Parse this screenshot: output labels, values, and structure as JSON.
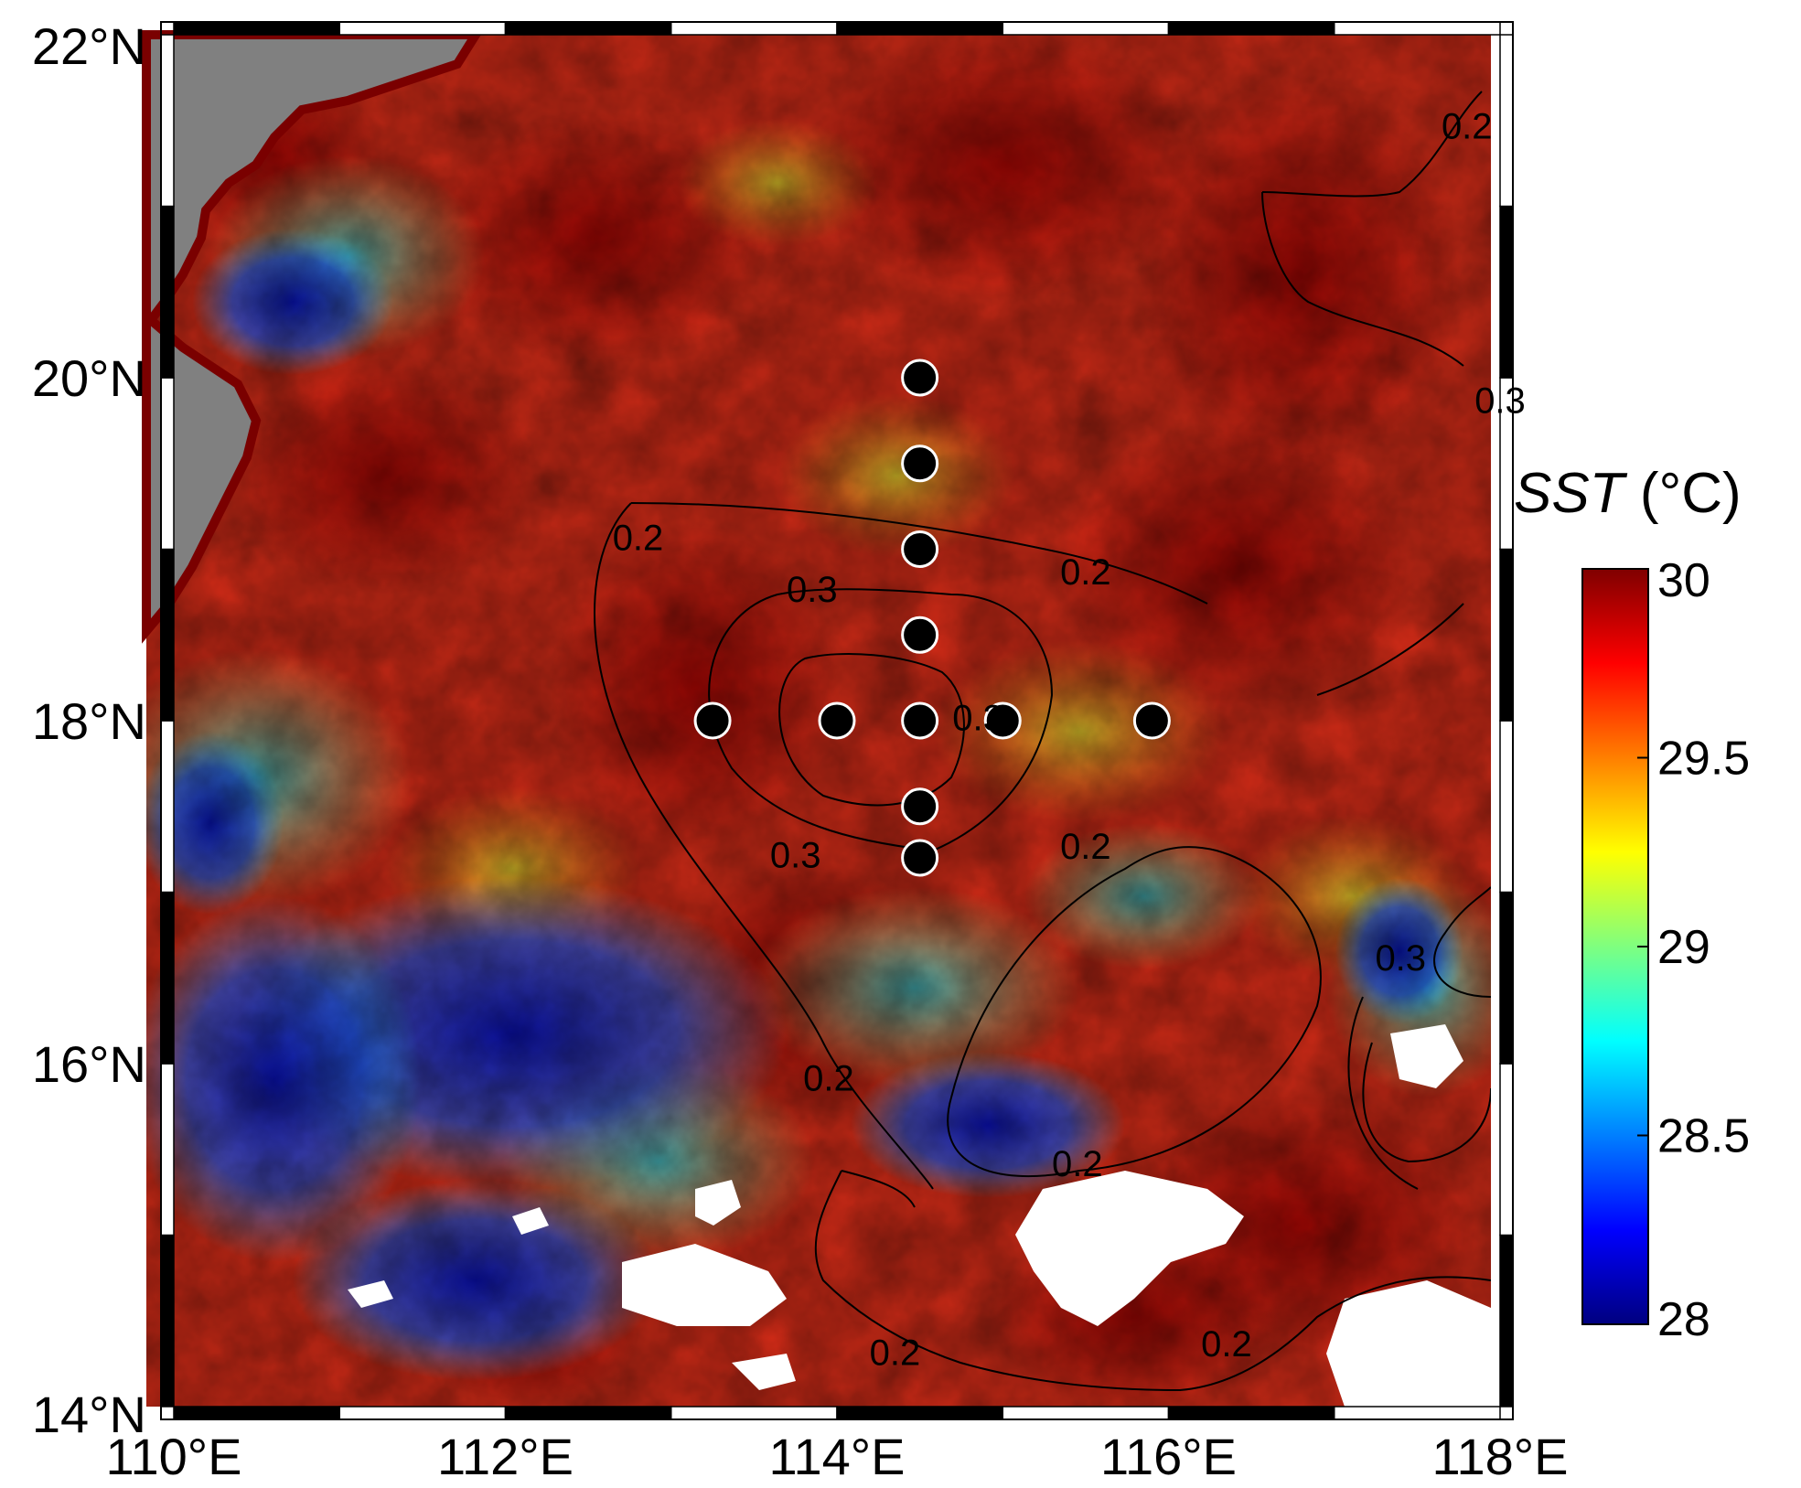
{
  "map": {
    "lon_range": [
      110,
      118
    ],
    "lat_range": [
      14,
      22
    ],
    "lon_ticks": [
      {
        "value": 110,
        "label": "110°E"
      },
      {
        "value": 112,
        "label": "112°E"
      },
      {
        "value": 114,
        "label": "114°E"
      },
      {
        "value": 116,
        "label": "116°E"
      },
      {
        "value": 118,
        "label": "118°E"
      }
    ],
    "lat_ticks": [
      {
        "value": 14,
        "label": "14°N"
      },
      {
        "value": 16,
        "label": "16°N"
      },
      {
        "value": 18,
        "label": "18°N"
      },
      {
        "value": 20,
        "label": "20°N"
      },
      {
        "value": 22,
        "label": "22°N"
      }
    ],
    "frame_style": "alternating black-white border",
    "land_color": "#808080",
    "no_data_color": "#ffffff",
    "stations": [
      {
        "lon": 114.5,
        "lat": 20.0
      },
      {
        "lon": 114.5,
        "lat": 19.5
      },
      {
        "lon": 114.5,
        "lat": 19.0
      },
      {
        "lon": 114.5,
        "lat": 18.5
      },
      {
        "lon": 113.25,
        "lat": 18.0
      },
      {
        "lon": 114.0,
        "lat": 18.0
      },
      {
        "lon": 114.5,
        "lat": 18.0
      },
      {
        "lon": 115.0,
        "lat": 18.0
      },
      {
        "lon": 115.9,
        "lat": 18.0
      },
      {
        "lon": 114.5,
        "lat": 17.5
      },
      {
        "lon": 114.5,
        "lat": 17.2
      }
    ],
    "contour_labels": [
      {
        "text": "0.2",
        "lon": 112.8,
        "lat": 19.05
      },
      {
        "text": "0.2",
        "lon": 115.5,
        "lat": 18.85
      },
      {
        "text": "0.2",
        "lon": 117.8,
        "lat": 21.45
      },
      {
        "text": "0.3",
        "lon": 113.85,
        "lat": 18.75
      },
      {
        "text": "0.3",
        "lon": 114.85,
        "lat": 18.0
      },
      {
        "text": "0.3",
        "lon": 113.75,
        "lat": 17.2
      },
      {
        "text": "0.2",
        "lon": 115.5,
        "lat": 17.25
      },
      {
        "text": "0.2",
        "lon": 113.95,
        "lat": 15.9
      },
      {
        "text": "0.3",
        "lon": 117.4,
        "lat": 16.6
      },
      {
        "text": "0.2",
        "lon": 115.45,
        "lat": 15.4
      },
      {
        "text": "0.2",
        "lon": 114.35,
        "lat": 14.3
      },
      {
        "text": "0.2",
        "lon": 116.35,
        "lat": 14.35
      },
      {
        "text": "0.3",
        "lon": 118.0,
        "lat": 19.85
      }
    ]
  },
  "colorbar": {
    "title_italic": "SST",
    "title_units": " (°C)",
    "min": 28,
    "max": 30,
    "tick_labels": [
      "30",
      "29.5",
      "29",
      "28.5",
      "28"
    ],
    "tick_values": [
      30,
      29.5,
      29,
      28.5,
      28
    ],
    "colormap": "jet",
    "colors": [
      "#00007f",
      "#0000ff",
      "#007fff",
      "#00ffff",
      "#7fff7f",
      "#ffff00",
      "#ff7f00",
      "#ff0000",
      "#7f0000"
    ]
  }
}
